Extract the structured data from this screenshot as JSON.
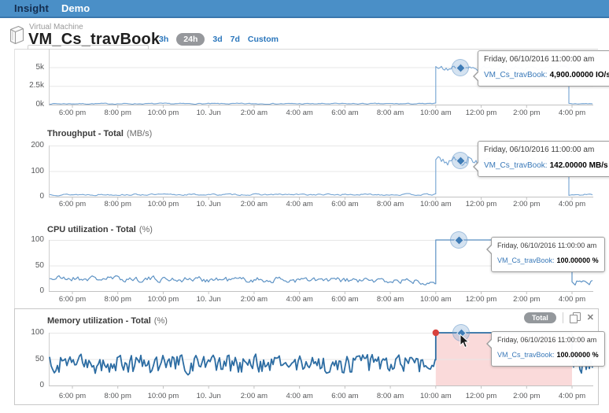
{
  "header": {
    "brand": "Insight",
    "nav": "Demo"
  },
  "page": {
    "type_label": "Virtual Machine",
    "title": "VM_Cs_travBook"
  },
  "time_selector": {
    "options": [
      "3h",
      "24h",
      "3d",
      "7d",
      "Custom"
    ],
    "selected": "24h"
  },
  "x_axis": {
    "ticks": [
      "6:00 pm",
      "8:00 pm",
      "10:00 pm",
      "10. Jun",
      "2:00 am",
      "4:00 am",
      "6:00 am",
      "8:00 am",
      "10:00 am",
      "12:00 pm",
      "2:00 pm",
      "4:00 pm"
    ]
  },
  "memory_panel": {
    "badge": "Total"
  },
  "colors": {
    "header_bg": "#4a8fc7",
    "link_blue": "#2a76bc",
    "selected_pill": "#96989c",
    "line_light_blue": "#73a3d2",
    "line_cpu": "#5e93c5",
    "line_memory": "#2d6da3",
    "selection_pink": "rgba(238,118,118,0.27)",
    "jump_dot_red": "#d8413c",
    "marker_blue": "#3f7cb6",
    "tooltip_series_blue": "#3878b8"
  },
  "chart_data": [
    {
      "id": "iops",
      "type": "line",
      "title": "",
      "unit": "IO/s",
      "y_ticks": [
        "5k",
        "2.5k",
        "0k"
      ],
      "ylim": [
        0,
        5000
      ],
      "baseline": 120,
      "baseline_amplitude": 110,
      "baseline_trend": 0,
      "elevated": {
        "value": 4880,
        "amplitude": 420,
        "start": "10:00 am",
        "end": "4:00 pm"
      },
      "tooltip": {
        "date": "Friday, 06/10/2016 11:00:00 am",
        "series_label": "VM_Cs_travBook:",
        "value": "4,900.00000 IO/s"
      }
    },
    {
      "id": "throughput",
      "type": "line",
      "title": "Throughput - Total",
      "unit": "(MB/s)",
      "y_ticks": [
        "200",
        "100",
        "0"
      ],
      "ylim": [
        0,
        200
      ],
      "baseline": 8,
      "baseline_amplitude": 5,
      "baseline_trend": 0,
      "elevated": {
        "value": 140,
        "amplitude": 22,
        "start": "10:00 am",
        "end": "4:00 pm"
      },
      "tooltip": {
        "date": "Friday, 06/10/2016 11:00:00 am",
        "series_label": "VM_Cs_travBook:",
        "value": "142.00000 MB/s"
      }
    },
    {
      "id": "cpu",
      "type": "line",
      "title": "CPU utilization - Total",
      "unit": "(%)",
      "y_ticks": [
        "100",
        "50",
        "0"
      ],
      "ylim": [
        0,
        100
      ],
      "baseline": 25,
      "baseline_amplitude": 9,
      "baseline_trend": -8,
      "elevated": {
        "value": 100,
        "amplitude": 0,
        "start": "10:00 am",
        "end": "4:00 pm"
      },
      "tooltip": {
        "date": "Friday, 06/10/2016 11:00:00 am",
        "series_label": "VM_Cs_travBook:",
        "value": "100.00000 %"
      }
    },
    {
      "id": "memory",
      "type": "line",
      "title": "Memory utilization - Total",
      "unit": "(%)",
      "y_ticks": [
        "100",
        "50",
        "0"
      ],
      "ylim": [
        0,
        100
      ],
      "baseline": 40,
      "baseline_amplitude": 21,
      "baseline_trend": 0,
      "elevated": {
        "value": 100,
        "amplitude": 0,
        "start": "10:00 am",
        "end": "4:00 pm"
      },
      "selection": {
        "from": "10:00 am",
        "to": "4:00 pm"
      },
      "jump_marker": {
        "time": "10:00 am",
        "value": 100
      },
      "tooltip": {
        "date": "Friday, 06/10/2016 11:00:00 am",
        "series_label": "VM_Cs_travBook:",
        "value": "100.00000 %"
      }
    }
  ]
}
